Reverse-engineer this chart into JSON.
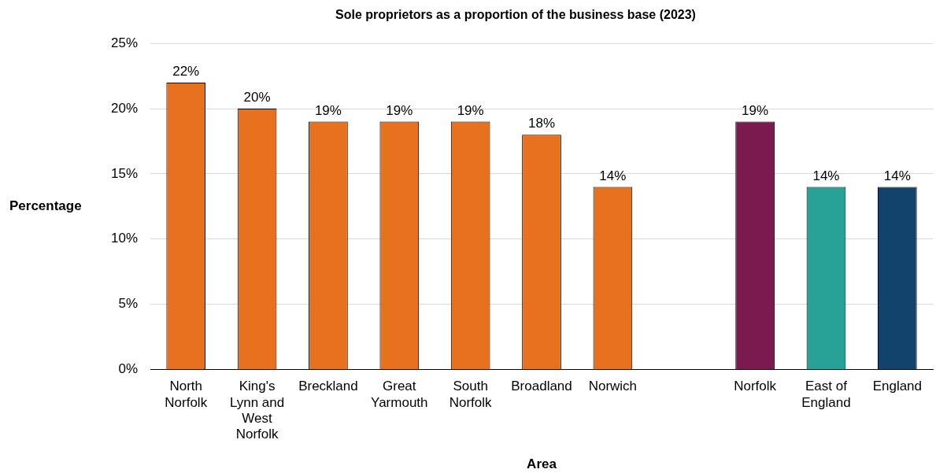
{
  "chart_data": {
    "type": "bar",
    "title": "Sole proprietors as a proportion of the business base (2023)",
    "xlabel": "Area",
    "ylabel": "Percentage",
    "categories": [
      "North Norfolk",
      "King's Lynn and West Norfolk",
      "Breckland",
      "Great Yarmouth",
      "South Norfolk",
      "Broadland",
      "Norwich",
      null,
      "Norfolk",
      "East of England",
      "England"
    ],
    "values": [
      22,
      20,
      19,
      19,
      19,
      18,
      14,
      null,
      19,
      14,
      14
    ],
    "colors": [
      "#e8711f",
      "#e8711f",
      "#e8711f",
      "#e8711f",
      "#e8711f",
      "#e8711f",
      "#e8711f",
      null,
      "#7b1a4e",
      "#28a197",
      "#12436d"
    ],
    "value_labels": [
      "22%",
      "20%",
      "19%",
      "19%",
      "19%",
      "18%",
      "14%",
      null,
      "19%",
      "14%",
      "14%"
    ],
    "ylim": [
      0,
      25
    ],
    "yticks": [
      {
        "value": 0,
        "label": "0%"
      },
      {
        "value": 5,
        "label": "5%"
      },
      {
        "value": 10,
        "label": "10%"
      },
      {
        "value": 15,
        "label": "15%"
      },
      {
        "value": 20,
        "label": "20%"
      },
      {
        "value": 25,
        "label": "25%"
      }
    ],
    "grid": "y",
    "legend": false
  }
}
